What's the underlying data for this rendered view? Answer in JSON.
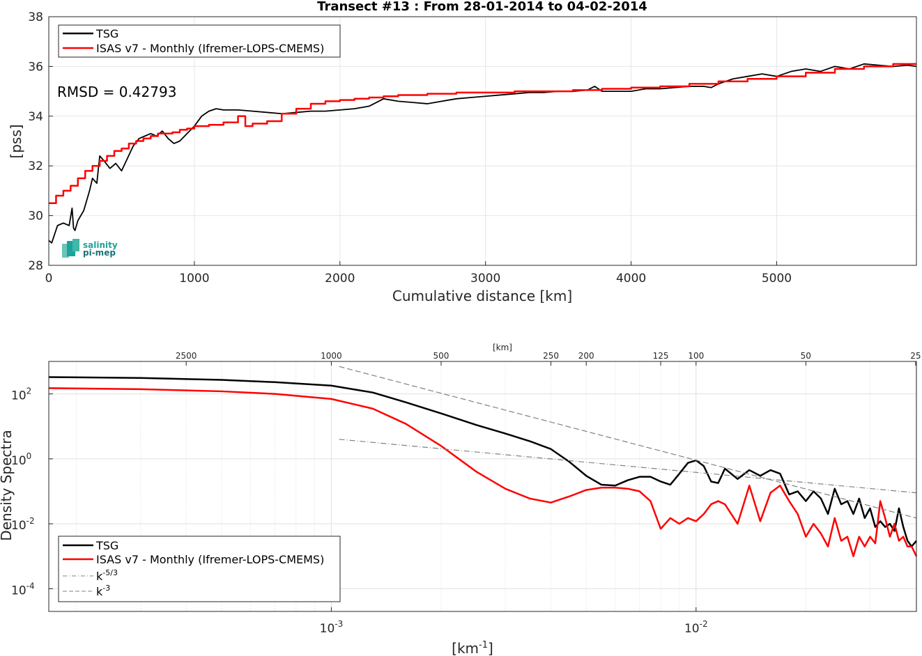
{
  "colors": {
    "tsg": "#000000",
    "isas": "#ff0000",
    "ref": "#808080",
    "grid": "#e6e6e6",
    "logo": "#1ba39c"
  },
  "logo": {
    "line1": "salinity",
    "line2": "pi-mep"
  },
  "chart_data": [
    {
      "type": "line",
      "title": "Transect #13 : From 28-01-2014 to 04-02-2014",
      "xlabel": "Cumulative distance [km]",
      "ylabel": "[pss]",
      "xlim": [
        0,
        5960
      ],
      "ylim": [
        28,
        38
      ],
      "xticks": [
        0,
        1000,
        2000,
        3000,
        4000,
        5000
      ],
      "yticks": [
        28,
        30,
        32,
        34,
        36,
        38
      ],
      "grid": true,
      "legend_position": "top-left",
      "annotation": "RMSD = 0.42793",
      "series": [
        {
          "name": "TSG",
          "color": "#000000",
          "x": [
            0,
            20,
            60,
            100,
            140,
            160,
            170,
            180,
            200,
            240,
            280,
            300,
            330,
            350,
            380,
            420,
            460,
            500,
            540,
            580,
            620,
            660,
            700,
            740,
            780,
            820,
            860,
            900,
            950,
            1000,
            1050,
            1100,
            1150,
            1200,
            1300,
            1400,
            1500,
            1600,
            1700,
            1800,
            1900,
            2000,
            2100,
            2200,
            2300,
            2400,
            2500,
            2600,
            2700,
            2800,
            2900,
            3000,
            3100,
            3200,
            3300,
            3400,
            3500,
            3600,
            3700,
            3750,
            3800,
            3900,
            4000,
            4100,
            4200,
            4300,
            4400,
            4500,
            4550,
            4600,
            4700,
            4800,
            4900,
            5000,
            5100,
            5200,
            5300,
            5400,
            5500,
            5600,
            5700,
            5800,
            5900,
            5960
          ],
          "y": [
            29.0,
            28.9,
            29.6,
            29.7,
            29.6,
            30.3,
            29.5,
            29.4,
            29.8,
            30.2,
            31.0,
            31.5,
            31.3,
            32.4,
            32.2,
            31.9,
            32.1,
            31.8,
            32.3,
            32.8,
            33.1,
            33.2,
            33.3,
            33.2,
            33.4,
            33.1,
            32.9,
            33.0,
            33.3,
            33.6,
            34.0,
            34.2,
            34.3,
            34.25,
            34.25,
            34.2,
            34.15,
            34.1,
            34.15,
            34.2,
            34.2,
            34.25,
            34.3,
            34.4,
            34.7,
            34.6,
            34.55,
            34.5,
            34.6,
            34.7,
            34.75,
            34.8,
            34.85,
            34.9,
            34.95,
            34.95,
            35.0,
            35.0,
            35.05,
            35.2,
            35.0,
            35.0,
            35.0,
            35.1,
            35.1,
            35.15,
            35.2,
            35.2,
            35.15,
            35.3,
            35.5,
            35.6,
            35.7,
            35.6,
            35.8,
            35.9,
            35.8,
            36.0,
            35.9,
            36.1,
            36.05,
            36.0,
            36.05,
            36.0
          ]
        },
        {
          "name": "ISAS v7 - Monthly (Ifremer-LOPS-CMEMS)",
          "color": "#ff0000",
          "x": [
            0,
            50,
            100,
            150,
            200,
            250,
            300,
            350,
            400,
            450,
            500,
            550,
            600,
            650,
            700,
            750,
            800,
            850,
            900,
            950,
            1000,
            1100,
            1200,
            1300,
            1350,
            1400,
            1500,
            1600,
            1700,
            1800,
            1900,
            2000,
            2100,
            2200,
            2300,
            2400,
            2500,
            2600,
            2700,
            2800,
            2900,
            3000,
            3200,
            3400,
            3600,
            3800,
            4000,
            4200,
            4400,
            4600,
            4800,
            5000,
            5200,
            5400,
            5600,
            5800,
            5960
          ],
          "y": [
            30.5,
            30.8,
            31.0,
            31.2,
            31.5,
            31.8,
            32.0,
            32.2,
            32.4,
            32.6,
            32.7,
            32.9,
            33.0,
            33.1,
            33.2,
            33.3,
            33.3,
            33.35,
            33.45,
            33.5,
            33.6,
            33.65,
            33.75,
            34.0,
            33.6,
            33.7,
            33.8,
            34.1,
            34.3,
            34.5,
            34.6,
            34.65,
            34.7,
            34.75,
            34.8,
            34.85,
            34.85,
            34.9,
            34.9,
            34.95,
            34.95,
            34.95,
            35.0,
            35.0,
            35.05,
            35.1,
            35.15,
            35.2,
            35.3,
            35.4,
            35.5,
            35.6,
            35.75,
            35.9,
            36.0,
            36.1,
            36.1
          ]
        }
      ]
    },
    {
      "type": "line",
      "xscale": "log",
      "yscale": "log",
      "xlabel": "[km",
      "xlabel_superscript": "-1",
      "ylabel": "Density Spectra",
      "xlim": [
        0.000168,
        0.0402
      ],
      "ylim": [
        2e-05,
        1000
      ],
      "xticks": [
        0.001,
        0.01
      ],
      "xtick_labels": [
        {
          "base": "10",
          "exp": "-3"
        },
        {
          "base": "10",
          "exp": "-2"
        }
      ],
      "yticks": [
        0.0001,
        0.01,
        1,
        100
      ],
      "ytick_labels": [
        {
          "base": "10",
          "exp": "-4"
        },
        {
          "base": "10",
          "exp": "-2"
        },
        {
          "base": "10",
          "exp": "0"
        },
        {
          "base": "10",
          "exp": "2"
        }
      ],
      "top_axis_label": "[km]",
      "top_axis_ticks": [
        2500,
        1000,
        500,
        250,
        200,
        125,
        100,
        50,
        25
      ],
      "grid": true,
      "legend_position": "bottom-left",
      "series": [
        {
          "name": "TSG",
          "color": "#000000",
          "x": [
            0.000168,
            0.0003,
            0.0005,
            0.0007,
            0.001,
            0.0013,
            0.0016,
            0.002,
            0.0025,
            0.003,
            0.0035,
            0.004,
            0.0045,
            0.005,
            0.0055,
            0.006,
            0.0065,
            0.007,
            0.0075,
            0.008,
            0.0085,
            0.009,
            0.0095,
            0.01,
            0.0105,
            0.011,
            0.0115,
            0.012,
            0.013,
            0.014,
            0.015,
            0.016,
            0.017,
            0.018,
            0.019,
            0.02,
            0.021,
            0.022,
            0.023,
            0.024,
            0.025,
            0.026,
            0.027,
            0.028,
            0.029,
            0.03,
            0.031,
            0.032,
            0.033,
            0.034,
            0.035,
            0.036,
            0.037,
            0.038,
            0.039,
            0.0402
          ],
          "y": [
            330,
            310,
            270,
            230,
            180,
            110,
            55,
            25,
            11,
            6,
            3.5,
            2.0,
            0.8,
            0.3,
            0.16,
            0.15,
            0.22,
            0.28,
            0.28,
            0.2,
            0.16,
            0.35,
            0.75,
            0.9,
            0.6,
            0.2,
            0.18,
            0.5,
            0.24,
            0.45,
            0.3,
            0.45,
            0.35,
            0.08,
            0.1,
            0.05,
            0.1,
            0.06,
            0.02,
            0.12,
            0.04,
            0.05,
            0.02,
            0.06,
            0.015,
            0.03,
            0.008,
            0.012,
            0.008,
            0.01,
            0.006,
            0.03,
            0.008,
            0.003,
            0.002,
            0.003
          ]
        },
        {
          "name": "ISAS v7 - Monthly (Ifremer-LOPS-CMEMS)",
          "color": "#ff0000",
          "x": [
            0.000168,
            0.0003,
            0.0005,
            0.0007,
            0.001,
            0.0013,
            0.0016,
            0.002,
            0.0025,
            0.003,
            0.0035,
            0.004,
            0.0045,
            0.005,
            0.0055,
            0.006,
            0.0065,
            0.007,
            0.0075,
            0.008,
            0.0085,
            0.009,
            0.0095,
            0.01,
            0.0105,
            0.011,
            0.0115,
            0.012,
            0.013,
            0.014,
            0.015,
            0.016,
            0.017,
            0.018,
            0.019,
            0.02,
            0.021,
            0.022,
            0.023,
            0.024,
            0.025,
            0.026,
            0.027,
            0.028,
            0.029,
            0.03,
            0.031,
            0.032,
            0.033,
            0.034,
            0.035,
            0.036,
            0.037,
            0.038,
            0.039,
            0.0402
          ],
          "y": [
            150,
            140,
            120,
            100,
            70,
            35,
            12,
            2.5,
            0.4,
            0.12,
            0.06,
            0.045,
            0.07,
            0.11,
            0.13,
            0.13,
            0.12,
            0.1,
            0.05,
            0.007,
            0.015,
            0.01,
            0.015,
            0.012,
            0.02,
            0.04,
            0.05,
            0.04,
            0.01,
            0.15,
            0.012,
            0.09,
            0.15,
            0.05,
            0.02,
            0.004,
            0.01,
            0.005,
            0.002,
            0.015,
            0.003,
            0.004,
            0.001,
            0.004,
            0.002,
            0.004,
            0.0025,
            0.05,
            0.015,
            0.004,
            0.01,
            0.003,
            0.004,
            0.002,
            0.002,
            0.001
          ]
        },
        {
          "name": "k",
          "name_superscript": "-5/3",
          "color": "#808080",
          "dash": "dashdot",
          "x": [
            0.00105,
            0.0402
          ],
          "y": [
            4.0,
            0.09
          ]
        },
        {
          "name": "k",
          "name_superscript": "-3",
          "color": "#808080",
          "dash": "dashed",
          "x": [
            0.00105,
            0.0402
          ],
          "y": [
            700,
            0.015
          ]
        }
      ]
    }
  ]
}
